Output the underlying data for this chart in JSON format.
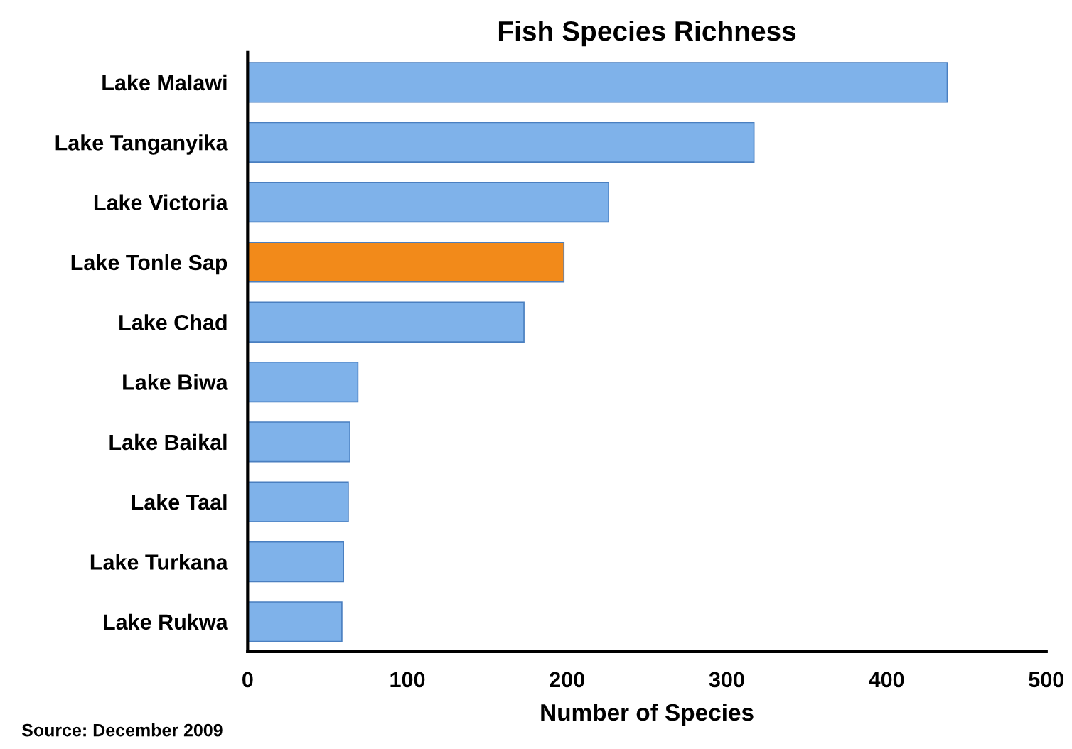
{
  "chart_data": {
    "type": "bar",
    "orientation": "horizontal",
    "title": "Fish Species Richness",
    "xlabel": "Number of Species",
    "categories": [
      "Lake Malawi",
      "Lake Tanganyika",
      "Lake Victoria",
      "Lake Tonle Sap",
      "Lake Chad",
      "Lake Biwa",
      "Lake Baikal",
      "Lake Taal",
      "Lake Turkana",
      "Lake Rukwa"
    ],
    "values": [
      438,
      317,
      226,
      198,
      173,
      69,
      64,
      63,
      60,
      59
    ],
    "colors": [
      "#7fb2ea",
      "#7fb2ea",
      "#7fb2ea",
      "#f28a1a",
      "#7fb2ea",
      "#7fb2ea",
      "#7fb2ea",
      "#7fb2ea",
      "#7fb2ea",
      "#7fb2ea"
    ],
    "xlim": [
      0,
      500
    ],
    "xticks": [
      0,
      100,
      200,
      300,
      400,
      500
    ],
    "grid": false,
    "legend": false,
    "annotations": [
      "Source: December 2009"
    ]
  }
}
